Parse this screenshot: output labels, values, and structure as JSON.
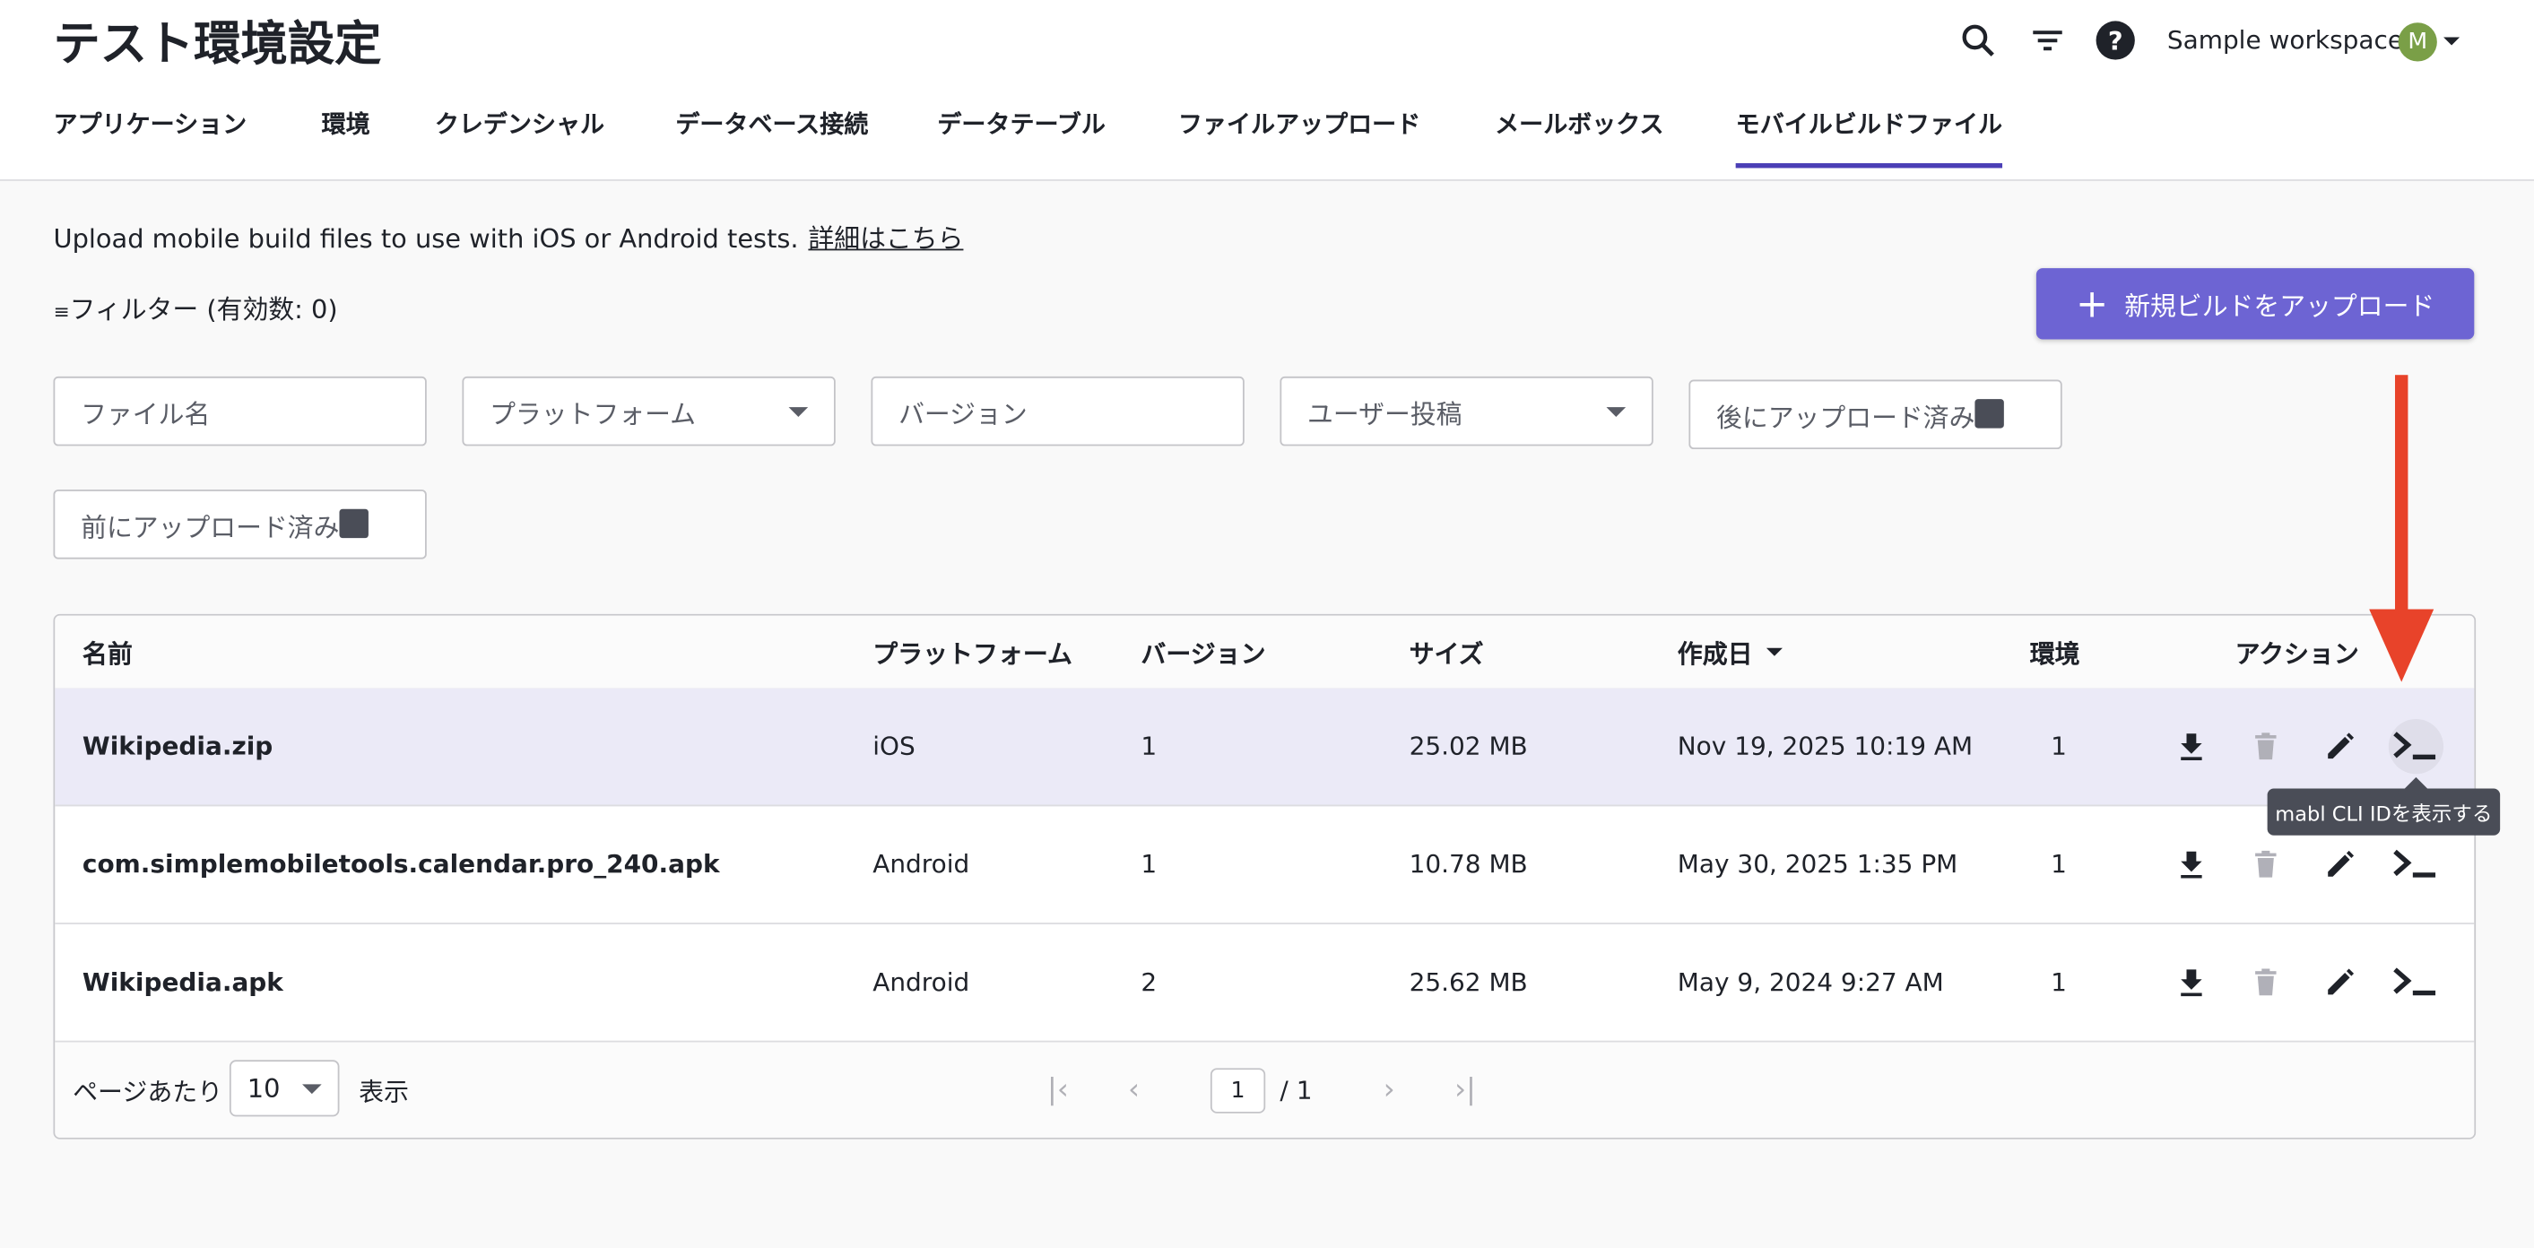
{
  "header": {
    "title": "テスト環境設定",
    "workspace": "Sample workspace",
    "avatar_initial": "M",
    "avatar_color": "#7a9f47"
  },
  "tabs": [
    {
      "label": "アプリケーション"
    },
    {
      "label": "環境"
    },
    {
      "label": "クレデンシャル"
    },
    {
      "label": "データベース接続"
    },
    {
      "label": "データテーブル"
    },
    {
      "label": "ファイルアップロード"
    },
    {
      "label": "メールボックス"
    },
    {
      "label": "モバイルビルドファイル",
      "active": true
    }
  ],
  "main": {
    "description": "Upload mobile build files to use with iOS or Android tests.",
    "learn_more": "詳細はこちら",
    "filter_label": "フィルター (有効数: 0)",
    "upload_button": "新規ビルドをアップロード",
    "filters": {
      "file_name": "ファイル名",
      "platform": "プラットフォーム",
      "version": "バージョン",
      "uploaded_by": "ユーザー投稿",
      "uploaded_after": "後にアップロード済み",
      "uploaded_before": "前にアップロード済み"
    }
  },
  "table": {
    "columns": {
      "name": "名前",
      "platform": "プラットフォーム",
      "version": "バージョン",
      "size": "サイズ",
      "created": "作成日",
      "env": "環境",
      "actions": "アクション"
    },
    "rows": [
      {
        "name": "Wikipedia.zip",
        "platform": "iOS",
        "version": "1",
        "size": "25.02 MB",
        "created": "Nov 19, 2025 10:19 AM",
        "env": "1"
      },
      {
        "name": "com.simplemobiletools.calendar.pro_240.apk",
        "platform": "Android",
        "version": "1",
        "size": "10.78 MB",
        "created": "May 30, 2025 1:35 PM",
        "env": "1"
      },
      {
        "name": "Wikipedia.apk",
        "platform": "Android",
        "version": "2",
        "size": "25.62 MB",
        "created": "May 9, 2024 9:27 AM",
        "env": "1"
      }
    ],
    "footer": {
      "per_page_label": "ページあたり",
      "per_page": "10",
      "show_label": "表示",
      "page": "1",
      "total_pages": "/ 1"
    }
  },
  "tooltip": "mabl CLI IDを表示する",
  "colors": {
    "accent": "#6d64d3",
    "tab_active": "#4b3fb6",
    "arrow": "#e8432a",
    "row_highlight": "#ebeaf7"
  }
}
